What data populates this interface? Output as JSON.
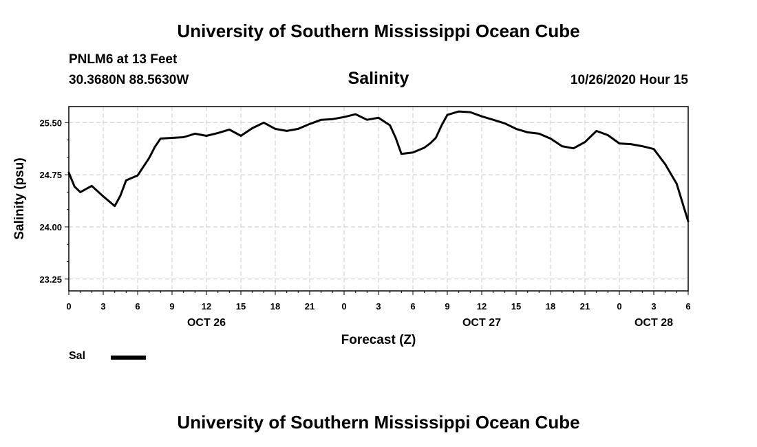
{
  "header": {
    "title_top": "University of Southern Mississippi Ocean Cube",
    "station": "PNLM6 at 13 Feet",
    "coords": "30.3680N 88.5630W",
    "issued": "10/26/2020 Hour 15",
    "title_bottom": "University of Southern Mississippi Ocean Cube"
  },
  "legend": {
    "label": "Sal",
    "color": "#000000"
  },
  "chart_data": {
    "type": "line",
    "title": "Salinity",
    "xlabel": "Forecast (Z)",
    "ylabel": "Salinity (psu)",
    "xlim": [
      0,
      54
    ],
    "ylim": [
      23.08,
      25.73
    ],
    "grid": true,
    "x_ticks": [
      0,
      3,
      6,
      9,
      12,
      15,
      18,
      21,
      24,
      27,
      30,
      33,
      36,
      39,
      42,
      45,
      48,
      51,
      54
    ],
    "x_tick_labels": [
      "0",
      "3",
      "6",
      "9",
      "12",
      "15",
      "18",
      "21",
      "0",
      "3",
      "6",
      "9",
      "12",
      "15",
      "18",
      "21",
      "0",
      "3",
      "6"
    ],
    "y_ticks": [
      23.25,
      24.0,
      24.75,
      25.5
    ],
    "y_tick_labels": [
      "23.25",
      "24.00",
      "24.75",
      "25.50"
    ],
    "dates": [
      {
        "label": "OCT 26",
        "x": 12
      },
      {
        "label": "OCT 27",
        "x": 36
      },
      {
        "label": "OCT 28",
        "x": 51
      }
    ],
    "series": [
      {
        "name": "Sal",
        "x": [
          0,
          0.5,
          1,
          2,
          3,
          4,
          4.5,
          5,
          6,
          7,
          7.5,
          8,
          9,
          10,
          11,
          12,
          13,
          14,
          15,
          16,
          17,
          18,
          19,
          20,
          21,
          22,
          23,
          24,
          25,
          26,
          27,
          28,
          28.5,
          29,
          30,
          31,
          31.5,
          32,
          32.5,
          33,
          34,
          35,
          36,
          37,
          38,
          39,
          40,
          41,
          42,
          43,
          44,
          45,
          46,
          47,
          48,
          49,
          50,
          51,
          52,
          53,
          54
        ],
        "values": [
          24.78,
          24.58,
          24.5,
          24.59,
          24.44,
          24.3,
          24.45,
          24.67,
          24.74,
          24.99,
          25.15,
          25.27,
          25.28,
          25.29,
          25.34,
          25.31,
          25.35,
          25.4,
          25.31,
          25.42,
          25.5,
          25.41,
          25.38,
          25.41,
          25.48,
          25.54,
          25.55,
          25.58,
          25.62,
          25.54,
          25.57,
          25.46,
          25.28,
          25.05,
          25.07,
          25.14,
          25.2,
          25.28,
          25.46,
          25.61,
          25.66,
          25.65,
          25.59,
          25.54,
          25.49,
          25.41,
          25.36,
          25.34,
          25.27,
          25.16,
          25.13,
          25.22,
          25.38,
          25.32,
          25.2,
          25.19,
          25.16,
          25.12,
          24.9,
          24.62,
          24.08
        ]
      }
    ]
  }
}
